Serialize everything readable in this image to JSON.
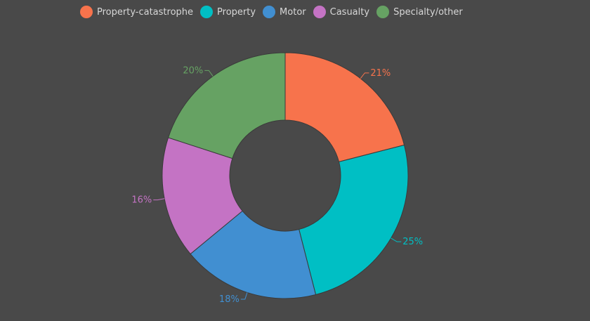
{
  "chart_data": {
    "type": "pie",
    "donut": true,
    "title": "",
    "legend_position": "top",
    "categories": [
      "Property-catastrophe",
      "Property",
      "Motor",
      "Casualty",
      "Specialty/other"
    ],
    "values": [
      21,
      25,
      18,
      16,
      20
    ],
    "labels": [
      "21%",
      "25%",
      "18%",
      "16%",
      "20%"
    ],
    "colors": [
      "#f7734c",
      "#00bfc4",
      "#418fd1",
      "#c473c4",
      "#66a263"
    ]
  },
  "colors": {
    "background": "#494949",
    "text": "#d7d7d7",
    "slice_border": "#3a3a3a"
  }
}
